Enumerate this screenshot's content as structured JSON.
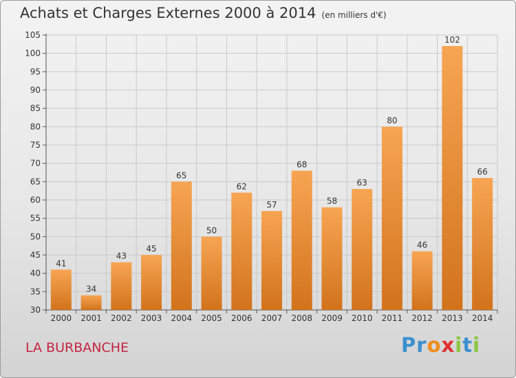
{
  "chart_data": {
    "type": "bar",
    "title": "Achats et Charges Externes 2000 à 2014",
    "subtitle": "(en milliers d'€)",
    "categories": [
      "2000",
      "2001",
      "2002",
      "2003",
      "2004",
      "2005",
      "2006",
      "2007",
      "2008",
      "2009",
      "2010",
      "2011",
      "2012",
      "2013",
      "2014"
    ],
    "values": [
      41,
      34,
      43,
      45,
      65,
      50,
      62,
      57,
      68,
      58,
      63,
      80,
      46,
      102,
      66
    ],
    "ylim": [
      30,
      105
    ],
    "yticks": [
      30,
      35,
      40,
      45,
      50,
      55,
      60,
      65,
      70,
      75,
      80,
      85,
      90,
      95,
      100,
      105
    ],
    "grid": true,
    "colors": {
      "bar_top": "#f7a553",
      "bar_bottom": "#d2731c",
      "grid": "#c9c9c9"
    }
  },
  "commune": "LA BURBANCHE",
  "brand": {
    "letters": [
      "P",
      "r",
      "o",
      "x",
      "i",
      "t",
      "i"
    ],
    "colors": [
      "#3a8fd0",
      "#3a8fd0",
      "#f08c1a",
      "#e02f2f",
      "#8cc63f",
      "#3a8fd0",
      "#8cc63f"
    ]
  }
}
